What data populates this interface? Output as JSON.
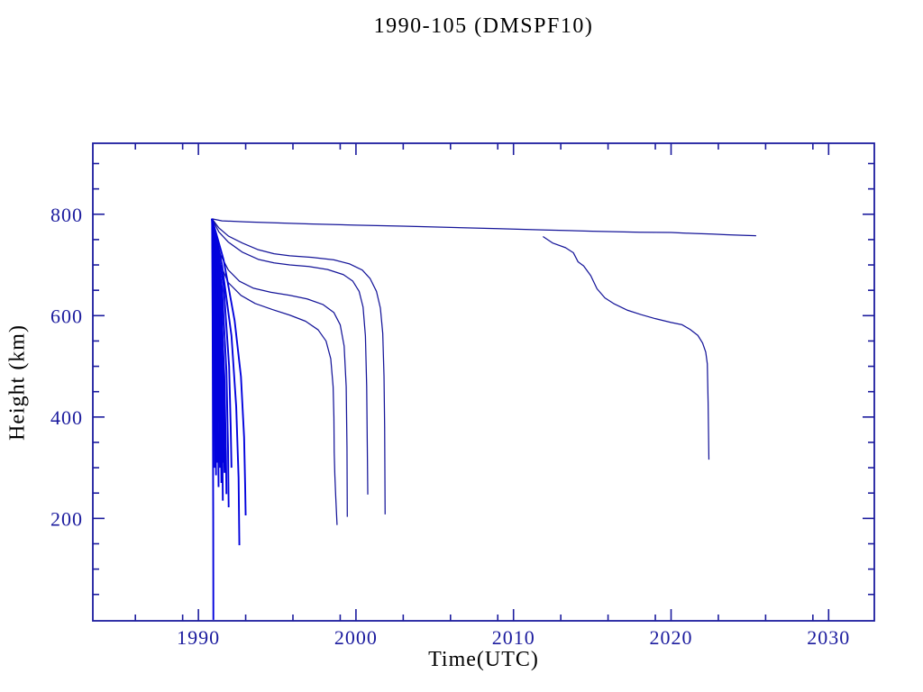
{
  "chart_data": {
    "type": "line",
    "title": "1990-105 (DMSPF10)",
    "xlabel": "Time(UTC)",
    "ylabel": "Height (km)",
    "xlim": [
      1983.3,
      2032.9
    ],
    "ylim": [
      -2,
      940
    ],
    "grid": false,
    "legend": "none",
    "x_major_ticks": [
      1990,
      2000,
      2010,
      2020,
      2030
    ],
    "x_minor_ticks": [
      1986,
      1989,
      1993,
      1996,
      1999,
      2003,
      2006,
      2009,
      2013,
      2016,
      2019,
      2023,
      2026,
      2029
    ],
    "y_major_ticks": [
      200,
      400,
      600,
      800
    ],
    "y_minor_ticks": [
      50,
      100,
      150,
      250,
      300,
      350,
      450,
      500,
      550,
      650,
      700,
      750,
      850,
      900
    ],
    "x_tick_labels": [
      "1990",
      "2000",
      "2010",
      "2020",
      "2030"
    ],
    "y_tick_labels": [
      "200",
      "400",
      "600",
      "800"
    ],
    "colors": {
      "axis": "#1b1b9e",
      "text": "#1b1b9e",
      "curve": "#151599",
      "cluster": "#0202dd",
      "background": "#ffffff"
    },
    "series": [
      {
        "name": "main-object-long-lived",
        "group": "curve",
        "points": [
          [
            1990.87,
            791
          ],
          [
            1991.5,
            787
          ],
          [
            1993,
            785
          ],
          [
            1995,
            783
          ],
          [
            1997,
            781
          ],
          [
            2000,
            778.5
          ],
          [
            2003,
            776.5
          ],
          [
            2006,
            774
          ],
          [
            2009,
            771.5
          ],
          [
            2012,
            769
          ],
          [
            2015,
            766.5
          ],
          [
            2018,
            764.5
          ],
          [
            2020,
            764
          ],
          [
            2021.5,
            762
          ],
          [
            2022.6,
            761
          ],
          [
            2023.5,
            759.5
          ],
          [
            2024.5,
            758.5
          ],
          [
            2025.4,
            757.7
          ]
        ]
      },
      {
        "name": "fragment-2012-decay",
        "group": "curve",
        "points": [
          [
            2011.87,
            756
          ],
          [
            2012.5,
            743
          ],
          [
            2013.3,
            734
          ],
          [
            2013.8,
            724
          ],
          [
            2014.1,
            706
          ],
          [
            2014.45,
            698
          ],
          [
            2014.9,
            679
          ],
          [
            2015.3,
            653
          ],
          [
            2015.8,
            635
          ],
          [
            2016.4,
            623
          ],
          [
            2017.2,
            611
          ],
          [
            2018.1,
            602
          ],
          [
            2019.0,
            594
          ],
          [
            2020.0,
            586.5
          ],
          [
            2020.7,
            582
          ],
          [
            2021.2,
            573
          ],
          [
            2021.7,
            561
          ],
          [
            2022.0,
            546
          ],
          [
            2022.2,
            528
          ],
          [
            2022.3,
            505
          ],
          [
            2022.35,
            430
          ],
          [
            2022.4,
            316
          ]
        ]
      },
      {
        "name": "debris-decay-2001",
        "group": "curve",
        "points": [
          [
            1990.87,
            791
          ],
          [
            1991.3,
            773
          ],
          [
            1991.9,
            757
          ],
          [
            1992.8,
            743
          ],
          [
            1993.8,
            730
          ],
          [
            1994.8,
            722
          ],
          [
            1995.8,
            718
          ],
          [
            1997.2,
            715
          ],
          [
            1998.6,
            710
          ],
          [
            1999.6,
            702
          ],
          [
            2000.4,
            690
          ],
          [
            2000.9,
            673
          ],
          [
            2001.3,
            648
          ],
          [
            2001.55,
            615
          ],
          [
            2001.7,
            565
          ],
          [
            2001.78,
            480
          ],
          [
            2001.82,
            380
          ],
          [
            2001.85,
            208
          ]
        ]
      },
      {
        "name": "debris-decay-2000",
        "group": "curve",
        "points": [
          [
            1990.87,
            791
          ],
          [
            1991.3,
            765
          ],
          [
            1991.9,
            745
          ],
          [
            1992.8,
            725
          ],
          [
            1993.8,
            711
          ],
          [
            1994.8,
            704
          ],
          [
            1995.8,
            700
          ],
          [
            1997.0,
            697
          ],
          [
            1998.2,
            691
          ],
          [
            1999.2,
            681
          ],
          [
            1999.8,
            668
          ],
          [
            2000.2,
            648
          ],
          [
            2000.45,
            617
          ],
          [
            2000.6,
            560
          ],
          [
            2000.68,
            460
          ],
          [
            2000.72,
            340
          ],
          [
            2000.75,
            247
          ]
        ]
      },
      {
        "name": "debris-decay-1999",
        "group": "curve",
        "points": [
          [
            1990.87,
            791
          ],
          [
            1991.4,
            720
          ],
          [
            1991.9,
            690
          ],
          [
            1992.6,
            668
          ],
          [
            1993.5,
            654
          ],
          [
            1994.6,
            646
          ],
          [
            1995.8,
            640
          ],
          [
            1996.9,
            633
          ],
          [
            1997.9,
            622
          ],
          [
            1998.6,
            606
          ],
          [
            1999.0,
            582
          ],
          [
            1999.25,
            540
          ],
          [
            1999.38,
            460
          ],
          [
            1999.43,
            340
          ],
          [
            1999.45,
            203
          ]
        ]
      },
      {
        "name": "debris-decay-1998",
        "group": "curve",
        "points": [
          [
            1990.87,
            791
          ],
          [
            1991.4,
            700
          ],
          [
            1991.9,
            665
          ],
          [
            1992.7,
            640
          ],
          [
            1993.6,
            624
          ],
          [
            1994.7,
            612
          ],
          [
            1995.8,
            601
          ],
          [
            1996.8,
            589
          ],
          [
            1997.6,
            572
          ],
          [
            1998.1,
            550
          ],
          [
            1998.4,
            515
          ],
          [
            1998.55,
            460
          ],
          [
            1998.6,
            400
          ],
          [
            1998.62,
            330
          ],
          [
            1998.66,
            285
          ],
          [
            1998.72,
            240
          ],
          [
            1998.8,
            187
          ]
        ]
      },
      {
        "name": "debris-reentry-1991-ground",
        "group": "cluster",
        "points": [
          [
            1990.87,
            791
          ],
          [
            1990.9,
            600
          ],
          [
            1990.92,
            400
          ],
          [
            1990.94,
            200
          ],
          [
            1990.95,
            0
          ]
        ]
      },
      {
        "name": "debris-rapid-1",
        "group": "cluster",
        "points": [
          [
            1990.87,
            791
          ],
          [
            1990.95,
            650
          ],
          [
            1991.0,
            500
          ],
          [
            1991.02,
            380
          ],
          [
            1991.03,
            300
          ]
        ]
      },
      {
        "name": "debris-rapid-2",
        "group": "cluster",
        "points": [
          [
            1990.87,
            791
          ],
          [
            1991.0,
            640
          ],
          [
            1991.08,
            480
          ],
          [
            1991.1,
            360
          ],
          [
            1991.12,
            285
          ]
        ]
      },
      {
        "name": "debris-rapid-3",
        "group": "cluster",
        "points": [
          [
            1990.87,
            791
          ],
          [
            1991.05,
            660
          ],
          [
            1991.15,
            500
          ],
          [
            1991.18,
            380
          ],
          [
            1991.2,
            310
          ]
        ]
      },
      {
        "name": "debris-rapid-4",
        "group": "cluster",
        "points": [
          [
            1990.87,
            791
          ],
          [
            1991.1,
            640
          ],
          [
            1991.22,
            470
          ],
          [
            1991.26,
            350
          ],
          [
            1991.28,
            262
          ]
        ]
      },
      {
        "name": "debris-rapid-5",
        "group": "cluster",
        "points": [
          [
            1990.87,
            791
          ],
          [
            1991.15,
            655
          ],
          [
            1991.3,
            480
          ],
          [
            1991.35,
            360
          ],
          [
            1991.37,
            300
          ]
        ]
      },
      {
        "name": "debris-rapid-6",
        "group": "cluster",
        "points": [
          [
            1990.87,
            791
          ],
          [
            1991.2,
            640
          ],
          [
            1991.38,
            470
          ],
          [
            1991.44,
            330
          ],
          [
            1991.46,
            270
          ]
        ]
      },
      {
        "name": "debris-rapid-7",
        "group": "cluster",
        "points": [
          [
            1990.87,
            791
          ],
          [
            1991.25,
            650
          ],
          [
            1991.45,
            480
          ],
          [
            1991.52,
            340
          ],
          [
            1991.55,
            235
          ]
        ]
      },
      {
        "name": "debris-rapid-8",
        "group": "cluster",
        "points": [
          [
            1990.87,
            791
          ],
          [
            1991.3,
            640
          ],
          [
            1991.55,
            470
          ],
          [
            1991.63,
            330
          ],
          [
            1991.66,
            290
          ]
        ]
      },
      {
        "name": "debris-rapid-9",
        "group": "cluster",
        "points": [
          [
            1990.87,
            791
          ],
          [
            1991.35,
            645
          ],
          [
            1991.5,
            500
          ],
          [
            1991.58,
            380
          ],
          [
            1991.6,
            310
          ]
        ]
      },
      {
        "name": "debris-rapid-10",
        "group": "cluster",
        "points": [
          [
            1990.87,
            791
          ],
          [
            1991.4,
            650
          ],
          [
            1991.65,
            480
          ],
          [
            1991.75,
            330
          ],
          [
            1991.78,
            248
          ]
        ]
      },
      {
        "name": "debris-rapid-11",
        "group": "cluster",
        "points": [
          [
            1990.87,
            791
          ],
          [
            1991.45,
            650
          ],
          [
            1991.6,
            490
          ],
          [
            1991.7,
            370
          ],
          [
            1991.73,
            295
          ]
        ]
      },
      {
        "name": "debris-rapid-12",
        "group": "cluster",
        "points": [
          [
            1990.87,
            791
          ],
          [
            1991.5,
            655
          ],
          [
            1991.78,
            490
          ],
          [
            1991.88,
            340
          ],
          [
            1991.92,
            222
          ]
        ]
      },
      {
        "name": "debris-rapid-13",
        "group": "cluster",
        "points": [
          [
            1990.87,
            791
          ],
          [
            1991.6,
            660
          ],
          [
            1991.95,
            500
          ],
          [
            1992.05,
            380
          ],
          [
            1992.1,
            300
          ]
        ]
      },
      {
        "name": "debris-decay-1992",
        "group": "cluster",
        "points": [
          [
            1990.87,
            791
          ],
          [
            1991.5,
            700
          ],
          [
            1992.1,
            560
          ],
          [
            1992.4,
            420
          ],
          [
            1992.55,
            280
          ],
          [
            1992.6,
            147
          ]
        ]
      },
      {
        "name": "debris-decay-1993",
        "group": "cluster",
        "points": [
          [
            1990.87,
            791
          ],
          [
            1991.6,
            710
          ],
          [
            1992.3,
            590
          ],
          [
            1992.7,
            480
          ],
          [
            1992.9,
            360
          ],
          [
            1992.97,
            260
          ],
          [
            1993.0,
            206
          ]
        ]
      }
    ]
  }
}
